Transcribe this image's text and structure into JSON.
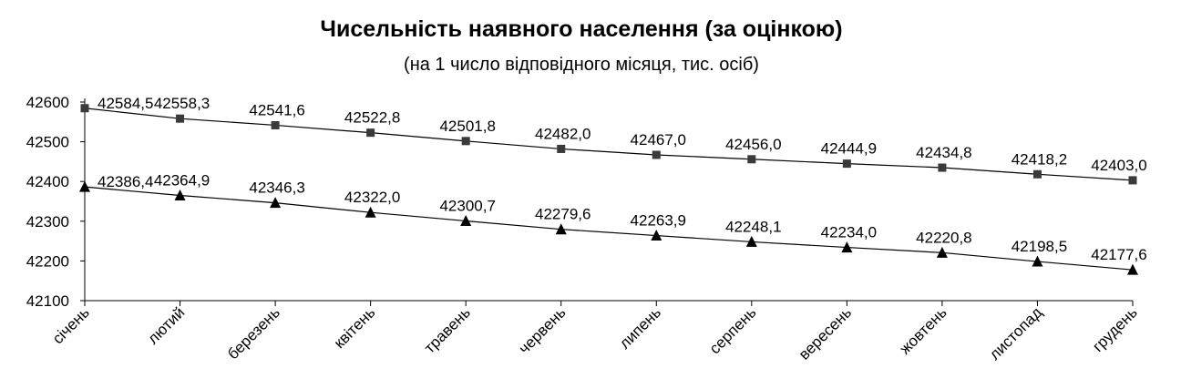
{
  "chart_data": {
    "type": "line",
    "title": "Чисельність наявного населення (за оцінкою)",
    "subtitle": "(на 1 число відповідного місяця, тис. осіб)",
    "xlabel": "",
    "ylabel": "",
    "ylim": [
      42100,
      42600
    ],
    "yticks": [
      "42100",
      "42200",
      "42300",
      "42400",
      "42500",
      "42600"
    ],
    "grid": false,
    "categories": [
      "січень",
      "лютий",
      "березень",
      "квітень",
      "травень",
      "червень",
      "липень",
      "серпень",
      "вересень",
      "жовтень",
      "листопад",
      "грудень"
    ],
    "series": [
      {
        "marker": "square",
        "values": [
          42584.5,
          42558.3,
          42541.6,
          42522.8,
          42501.8,
          42482.0,
          42467.0,
          42456.0,
          42444.9,
          42434.8,
          42418.2,
          42403.0
        ],
        "labels": [
          "42584,5",
          "42558,3",
          "42541,6",
          "42522,8",
          "42501,8",
          "42482,0",
          "42467,0",
          "42456,0",
          "42444,9",
          "42434,8",
          "42418,2",
          "42403,0"
        ]
      },
      {
        "marker": "triangle",
        "values": [
          42386.4,
          42364.9,
          42346.3,
          42322.0,
          42300.7,
          42279.6,
          42263.9,
          42248.1,
          42234.0,
          42220.8,
          42198.5,
          42177.6
        ],
        "labels": [
          "42386,4",
          "42364,9",
          "42346,3",
          "42322,0",
          "42300,7",
          "42279,6",
          "42263,9",
          "42248,1",
          "42234,0",
          "42220,8",
          "42198,5",
          "42177,6"
        ]
      }
    ],
    "colors": {
      "line": "#000000",
      "marker": "#3a3a3a"
    }
  }
}
